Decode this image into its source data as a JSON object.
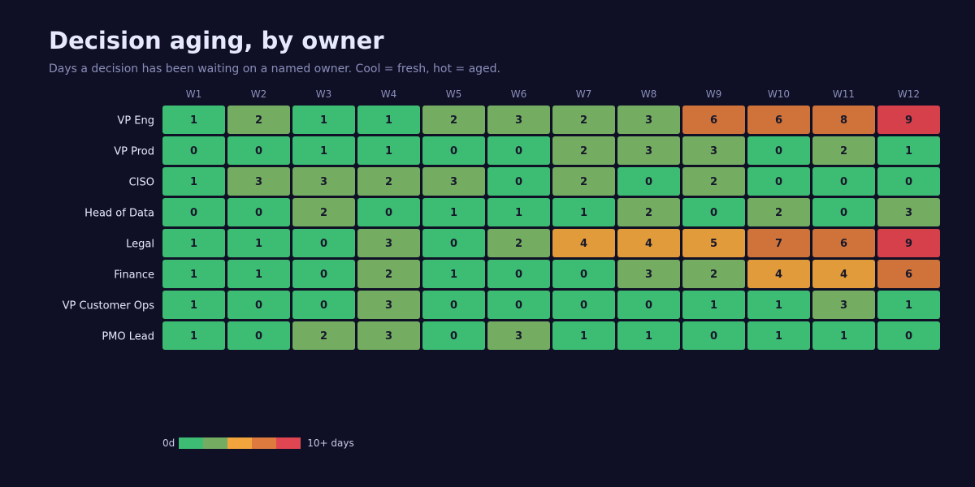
{
  "title": "Decision aging, by owner",
  "subtitle": "Days a decision has been waiting on a named owner. Cool = fresh, hot = aged.",
  "chart_data": {
    "type": "heatmap",
    "title": "Decision aging, by owner",
    "subtitle": "Days a decision has been waiting on a named owner. Cool = fresh, hot = aged.",
    "columns": [
      "W1",
      "W2",
      "W3",
      "W4",
      "W5",
      "W6",
      "W7",
      "W8",
      "W9",
      "W10",
      "W11",
      "W12"
    ],
    "rows": [
      "VP Eng",
      "VP Prod",
      "CISO",
      "Head of Data",
      "Legal",
      "Finance",
      "VP Customer Ops",
      "PMO Lead"
    ],
    "values": [
      [
        1,
        2,
        1,
        1,
        2,
        3,
        2,
        3,
        6,
        6,
        8,
        9
      ],
      [
        0,
        0,
        1,
        1,
        0,
        0,
        2,
        3,
        3,
        0,
        2,
        1
      ],
      [
        1,
        3,
        3,
        2,
        3,
        0,
        2,
        0,
        2,
        0,
        0,
        0
      ],
      [
        0,
        0,
        2,
        0,
        1,
        1,
        1,
        2,
        0,
        2,
        0,
        3
      ],
      [
        1,
        1,
        0,
        3,
        0,
        2,
        4,
        4,
        5,
        7,
        6,
        9
      ],
      [
        1,
        1,
        0,
        2,
        1,
        0,
        0,
        3,
        2,
        4,
        4,
        6
      ],
      [
        1,
        0,
        0,
        3,
        0,
        0,
        0,
        0,
        1,
        1,
        3,
        1
      ],
      [
        1,
        0,
        2,
        3,
        0,
        3,
        1,
        1,
        0,
        1,
        1,
        0
      ]
    ],
    "color_scale": {
      "bins": [
        {
          "max": 1,
          "color": "#3dbd73"
        },
        {
          "max": 3,
          "color": "#74ad62"
        },
        {
          "max": 5,
          "color": "#e19b3a"
        },
        {
          "max": 8,
          "color": "#cf733b"
        },
        {
          "max": 10,
          "color": "#d6404b"
        }
      ]
    },
    "legend": {
      "min_label": "0d",
      "max_label": "10+ days",
      "colors": [
        "#3dbd73",
        "#74ad62",
        "#f2a53c",
        "#df7a3e",
        "#e04651"
      ],
      "placement": "bottom-left"
    },
    "colors": {
      "background": "#0f1026",
      "row_label": "#e6e8fb",
      "column_label": "#8a8db8",
      "cell_text": "#17182b"
    }
  }
}
